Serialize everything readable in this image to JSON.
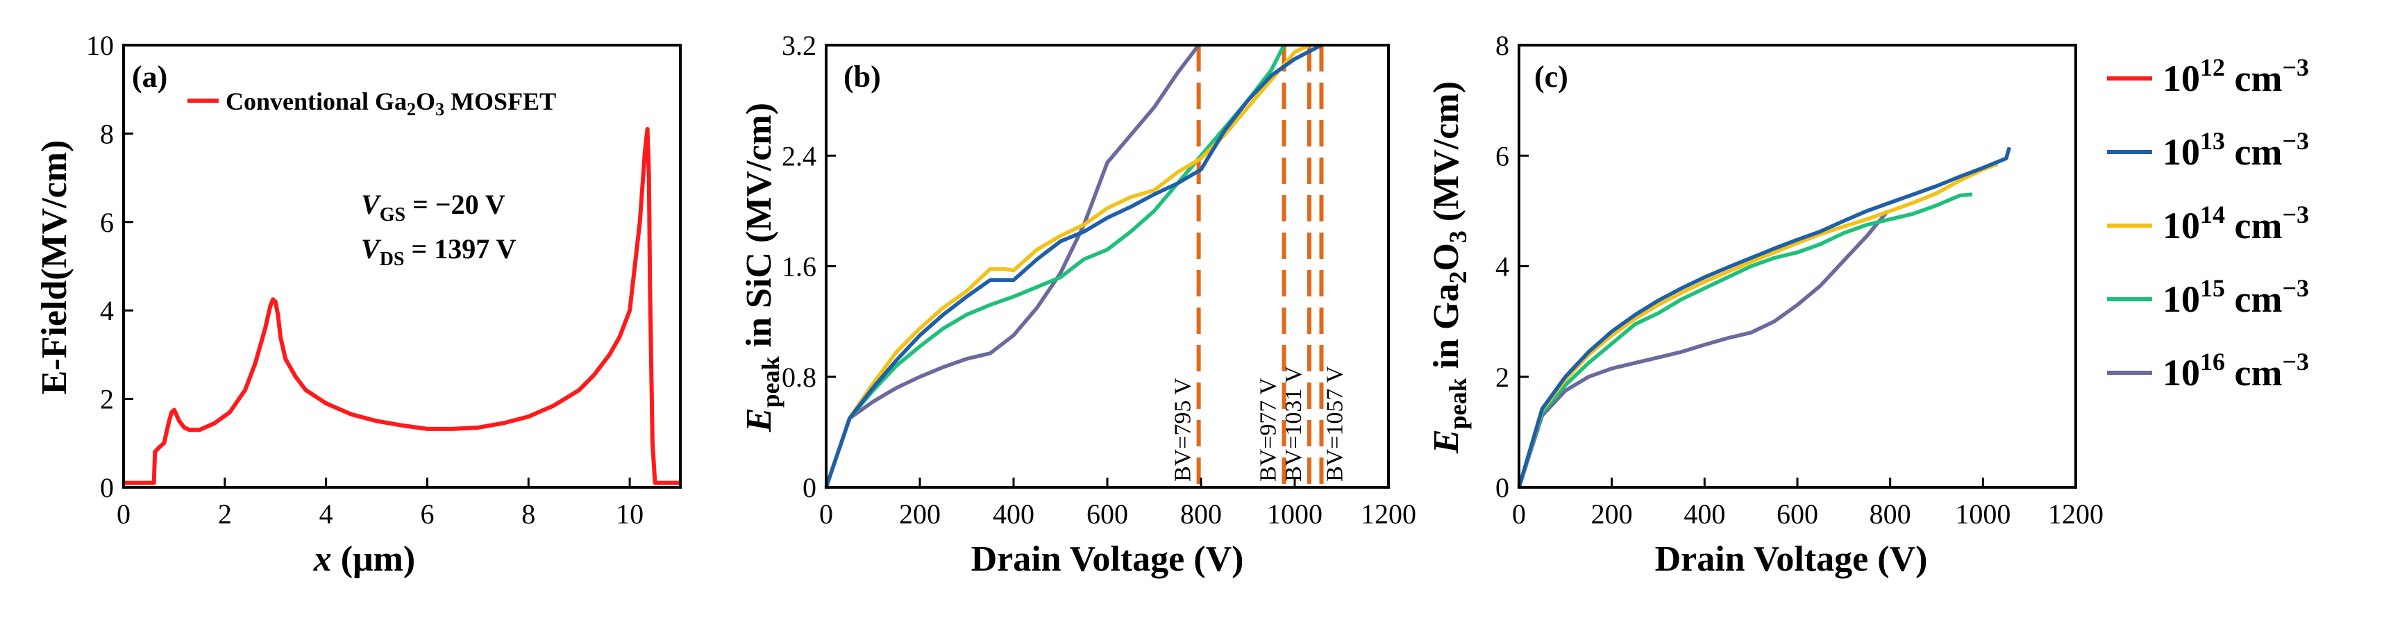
{
  "chart_data": [
    {
      "panel": "(a)",
      "type": "line",
      "xlabel": "x (μm)",
      "ylabel": "E-Field(MV/cm)",
      "xlim": [
        0,
        11
      ],
      "ylim": [
        0,
        10
      ],
      "xticks": [
        0,
        2,
        4,
        6,
        8,
        10
      ],
      "yticks": [
        0,
        2,
        4,
        6,
        8,
        10
      ],
      "legend": "Conventional Ga2O3 MOSFET",
      "annotations": [
        "VGS = −20 V",
        "VDS = 1397 V"
      ],
      "series": [
        {
          "name": "Conventional Ga2O3 MOSFET",
          "color": "#ff1a1a",
          "x": [
            0,
            0.6,
            0.62,
            0.7,
            0.8,
            0.9,
            0.95,
            1.0,
            1.1,
            1.2,
            1.3,
            1.5,
            1.8,
            2.1,
            2.4,
            2.6,
            2.8,
            2.9,
            2.95,
            3.0,
            3.05,
            3.1,
            3.2,
            3.4,
            3.6,
            4.0,
            4.5,
            5.0,
            5.5,
            6.0,
            6.5,
            7.0,
            7.5,
            8.0,
            8.5,
            9.0,
            9.3,
            9.6,
            9.8,
            10.0,
            10.1,
            10.2,
            10.3,
            10.35,
            10.38,
            10.4,
            10.45,
            10.5,
            11.0
          ],
          "y": [
            0.1,
            0.1,
            0.8,
            0.9,
            1.0,
            1.5,
            1.7,
            1.75,
            1.5,
            1.35,
            1.3,
            1.3,
            1.45,
            1.7,
            2.2,
            2.8,
            3.6,
            4.1,
            4.25,
            4.2,
            3.9,
            3.4,
            2.9,
            2.5,
            2.2,
            1.9,
            1.65,
            1.5,
            1.4,
            1.32,
            1.32,
            1.35,
            1.45,
            1.6,
            1.85,
            2.2,
            2.55,
            3.0,
            3.4,
            4.0,
            5.0,
            6.0,
            7.6,
            8.1,
            7.0,
            4.5,
            1.0,
            0.1,
            0.1
          ]
        }
      ]
    },
    {
      "panel": "(b)",
      "type": "line",
      "xlabel": "Drain Voltage (V)",
      "ylabel": "Epeak in SiC (MV/cm)",
      "xlim": [
        0,
        1200
      ],
      "ylim": [
        0,
        3.2
      ],
      "xticks": [
        0,
        200,
        400,
        600,
        800,
        1000,
        1200
      ],
      "yticks": [
        0,
        0.8,
        1.6,
        2.4,
        3.2
      ],
      "ytick_labels": [
        "0",
        "0.8",
        "1.6",
        "2.4",
        "3.2"
      ],
      "breakdown_lines": [
        {
          "x": 795,
          "label": "BV=795 V"
        },
        {
          "x": 977,
          "label": "BV=977 V"
        },
        {
          "x": 1031,
          "label": "BV=1031 V"
        },
        {
          "x": 1057,
          "label": "BV=1057 V"
        }
      ],
      "breakdown_color": "#e06a1a",
      "series": [
        {
          "name": "10^16",
          "color": "#6a6a9e",
          "x": [
            0,
            50,
            100,
            150,
            200,
            250,
            300,
            350,
            400,
            450,
            500,
            550,
            600,
            650,
            700,
            750,
            795
          ],
          "y": [
            0,
            0.5,
            0.62,
            0.72,
            0.8,
            0.87,
            0.93,
            0.97,
            1.1,
            1.3,
            1.55,
            1.9,
            2.35,
            2.55,
            2.75,
            3.0,
            3.2
          ]
        },
        {
          "name": "10^15",
          "color": "#1fc07a",
          "x": [
            0,
            50,
            100,
            150,
            200,
            250,
            300,
            350,
            400,
            450,
            500,
            550,
            600,
            650,
            700,
            750,
            800,
            850,
            900,
            950,
            977
          ],
          "y": [
            0,
            0.5,
            0.7,
            0.88,
            1.02,
            1.15,
            1.25,
            1.32,
            1.38,
            1.45,
            1.52,
            1.65,
            1.72,
            1.85,
            2.0,
            2.2,
            2.4,
            2.6,
            2.8,
            3.02,
            3.2
          ]
        },
        {
          "name": "10^14",
          "color": "#f2c21a",
          "x": [
            0,
            50,
            100,
            150,
            200,
            250,
            300,
            350,
            380,
            400,
            450,
            500,
            550,
            600,
            650,
            700,
            750,
            800,
            850,
            900,
            950,
            1000,
            1031
          ],
          "y": [
            0,
            0.5,
            0.75,
            0.98,
            1.15,
            1.3,
            1.42,
            1.58,
            1.58,
            1.57,
            1.72,
            1.82,
            1.9,
            2.02,
            2.1,
            2.15,
            2.28,
            2.38,
            2.55,
            2.75,
            2.95,
            3.15,
            3.2
          ]
        },
        {
          "name": "10^13",
          "color": "#1f5fa8",
          "x": [
            0,
            50,
            100,
            150,
            200,
            250,
            300,
            350,
            400,
            450,
            500,
            550,
            600,
            650,
            700,
            750,
            800,
            850,
            900,
            950,
            1000,
            1057
          ],
          "y": [
            0,
            0.5,
            0.72,
            0.92,
            1.1,
            1.25,
            1.38,
            1.5,
            1.5,
            1.65,
            1.78,
            1.85,
            1.95,
            2.03,
            2.12,
            2.2,
            2.3,
            2.58,
            2.8,
            2.98,
            3.1,
            3.2
          ]
        }
      ]
    },
    {
      "panel": "(c)",
      "type": "line",
      "xlabel": "Drain Voltage (V)",
      "ylabel": "Epeak in Ga2O3 (MV/cm)",
      "xlim": [
        0,
        1200
      ],
      "ylim": [
        0,
        8
      ],
      "xticks": [
        0,
        200,
        400,
        600,
        800,
        1000,
        1200
      ],
      "yticks": [
        0,
        2,
        4,
        6,
        8
      ],
      "series": [
        {
          "name": "10^16",
          "color": "#6a6a9e",
          "x": [
            0,
            50,
            100,
            150,
            200,
            250,
            300,
            350,
            400,
            450,
            500,
            550,
            600,
            650,
            700,
            750,
            795
          ],
          "y": [
            0,
            1.3,
            1.75,
            2.0,
            2.15,
            2.25,
            2.35,
            2.45,
            2.58,
            2.7,
            2.8,
            3.0,
            3.3,
            3.65,
            4.1,
            4.55,
            5.0
          ]
        },
        {
          "name": "10^15",
          "color": "#1fc07a",
          "x": [
            0,
            50,
            100,
            150,
            200,
            250,
            300,
            350,
            400,
            450,
            500,
            550,
            600,
            650,
            700,
            750,
            800,
            850,
            900,
            950,
            977
          ],
          "y": [
            0,
            1.35,
            1.85,
            2.25,
            2.6,
            2.95,
            3.15,
            3.4,
            3.6,
            3.8,
            4.0,
            4.15,
            4.25,
            4.4,
            4.6,
            4.75,
            4.85,
            4.95,
            5.1,
            5.28,
            5.3
          ]
        },
        {
          "name": "10^14",
          "color": "#f2c21a",
          "x": [
            0,
            50,
            100,
            150,
            200,
            250,
            300,
            350,
            400,
            450,
            500,
            550,
            600,
            650,
            700,
            750,
            800,
            850,
            900,
            950,
            1000,
            1031
          ],
          "y": [
            0,
            1.4,
            1.95,
            2.4,
            2.75,
            3.05,
            3.3,
            3.52,
            3.72,
            3.9,
            4.08,
            4.25,
            4.42,
            4.58,
            4.72,
            4.85,
            5.0,
            5.15,
            5.32,
            5.55,
            5.75,
            5.85
          ]
        },
        {
          "name": "10^13",
          "color": "#1f5fa8",
          "x": [
            0,
            50,
            100,
            150,
            200,
            250,
            300,
            350,
            400,
            450,
            500,
            550,
            600,
            650,
            700,
            750,
            800,
            850,
            900,
            950,
            1000,
            1050,
            1057
          ],
          "y": [
            0,
            1.42,
            2.0,
            2.45,
            2.82,
            3.12,
            3.38,
            3.6,
            3.8,
            3.98,
            4.15,
            4.32,
            4.48,
            4.63,
            4.82,
            5.0,
            5.15,
            5.3,
            5.45,
            5.62,
            5.78,
            5.95,
            6.15
          ]
        }
      ]
    }
  ],
  "legend": {
    "entries": [
      {
        "base": "10",
        "exp": "12",
        "unit": " cm",
        "unit_exp": "−3",
        "color": "#ff1a1a"
      },
      {
        "base": "10",
        "exp": "13",
        "unit": " cm",
        "unit_exp": "−3",
        "color": "#1f5fa8"
      },
      {
        "base": "10",
        "exp": "14",
        "unit": " cm",
        "unit_exp": "−3",
        "color": "#f2c21a"
      },
      {
        "base": "10",
        "exp": "15",
        "unit": " cm",
        "unit_exp": "−3",
        "color": "#1fc07a"
      },
      {
        "base": "10",
        "exp": "16",
        "unit": " cm",
        "unit_exp": "−3",
        "color": "#6a6a9e"
      }
    ]
  },
  "text": {
    "panel_a": {
      "label": "(a)",
      "legend_prefix": "Conventional Ga",
      "legend_sub": "2",
      "legend_mid": "O",
      "legend_sub2": "3",
      "legend_suffix": " MOSFET",
      "vgs_v": "V",
      "vgs_sub": "GS",
      "vgs_val": " = −20 V",
      "vds_v": "V",
      "vds_sub": "DS",
      "vds_val": " = 1397 V",
      "ylabel": "E-Field(MV/cm)",
      "xlabel_x": "x",
      "xlabel_rest": " (μm)"
    },
    "panel_b": {
      "label": "(b)",
      "ylabel_e": "E",
      "ylabel_sub": "peak",
      "ylabel_rest": " in SiC (MV/cm)",
      "xlabel": "Drain Voltage (V)"
    },
    "panel_c": {
      "label": "(c)",
      "ylabel_e": "E",
      "ylabel_sub": "peak",
      "ylabel_mid": " in Ga",
      "ylabel_sub2": "2",
      "ylabel_mid2": "O",
      "ylabel_sub3": "3",
      "ylabel_rest": " (MV/cm)",
      "xlabel": "Drain Voltage (V)"
    }
  }
}
